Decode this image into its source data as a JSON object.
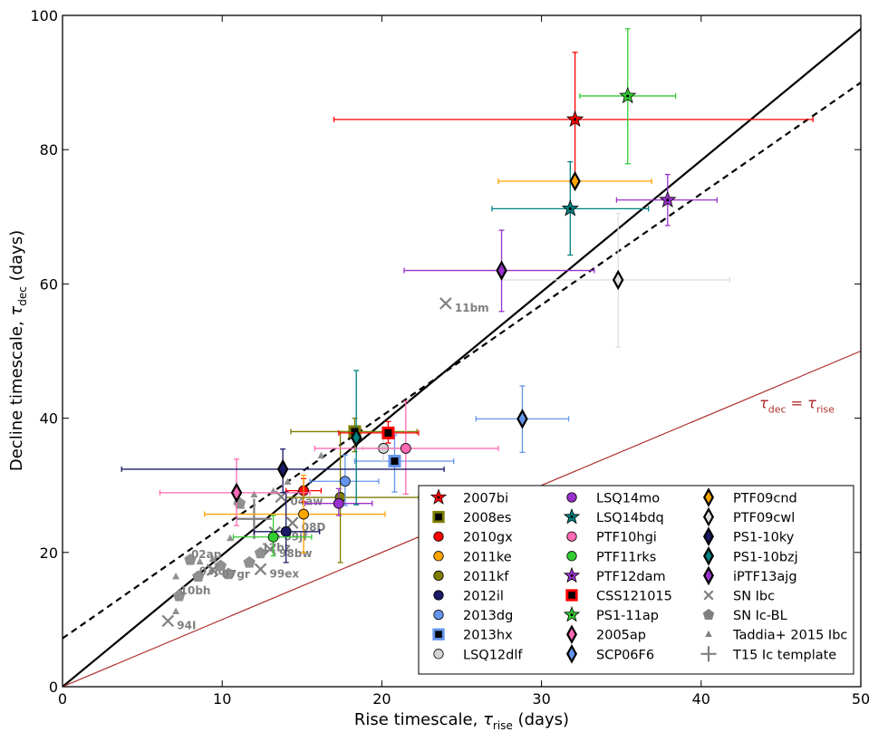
{
  "chart_data": {
    "type": "scatter",
    "xlabel_main": "Rise timescale, ",
    "xlabel_sym": "τ",
    "xlabel_sub": "rise",
    "xlabel_unit": " (days)",
    "ylabel_main": "Decline timescale, ",
    "ylabel_sym": "τ",
    "ylabel_sub": "dec",
    "ylabel_unit": " (days)",
    "xlim": [
      0,
      50
    ],
    "ylim": [
      0,
      100
    ],
    "xticks": [
      0,
      10,
      20,
      30,
      40,
      50
    ],
    "yticks": [
      0,
      20,
      40,
      60,
      80,
      100
    ],
    "xtick_labels": [
      "0",
      "10",
      "20",
      "30",
      "40",
      "50"
    ],
    "ytick_labels": [
      "0",
      "20",
      "40",
      "60",
      "80",
      "100"
    ],
    "lines": [
      {
        "name": "solid-fit",
        "x1": 0,
        "y1": 0,
        "x2": 50,
        "y2": 98,
        "color": "#000000",
        "dash": "",
        "width": 2.2
      },
      {
        "name": "dashed-fit",
        "x1": 0,
        "y1": 7.2,
        "x2": 50,
        "y2": 90,
        "color": "#000000",
        "dash": "7,5",
        "width": 2.2
      },
      {
        "name": "equality-line",
        "x1": 0,
        "y1": 0,
        "x2": 50,
        "y2": 50,
        "color": "#b03030",
        "dash": "",
        "width": 1.2
      }
    ],
    "equality_label": {
      "sym": "τ",
      "sub1": "dec",
      "eq": " = ",
      "sym2": "τ",
      "sub2": "rise",
      "color": "#b03030",
      "x": 46,
      "y": 41.5
    },
    "points": [
      {
        "name": "2007bi",
        "marker": "star",
        "color": "#ff0000",
        "x": 32.1,
        "y": 84.5,
        "xlo": 17,
        "xhi": 47,
        "ylo": 75,
        "yhi": 94.5
      },
      {
        "name": "2008es",
        "marker": "square",
        "color": "#7d7d00",
        "x": 18.3,
        "y": 38,
        "xlo": 14.3,
        "xhi": 22.2,
        "ylo": 35,
        "yhi": 40
      },
      {
        "name": "2010gx",
        "marker": "circle",
        "color": "#ff0000",
        "x": 15.1,
        "y": 29.2,
        "xlo": 14.0,
        "xhi": 16.2,
        "ylo": 27.5,
        "yhi": 31
      },
      {
        "name": "2011ke",
        "marker": "circle",
        "color": "#ffa500",
        "x": 15.1,
        "y": 25.7,
        "xlo": 8.9,
        "xhi": 20.2,
        "ylo": 20,
        "yhi": 31.5
      },
      {
        "name": "2011kf",
        "marker": "circle",
        "color": "#7d7d00",
        "x": 17.4,
        "y": 28.2,
        "xlo": 14.0,
        "xhi": 22.3,
        "ylo": 18.5,
        "yhi": 38
      },
      {
        "name": "2012il",
        "marker": "circle",
        "color": "#1a1a66",
        "x": 14.0,
        "y": 23.1,
        "xlo": 12.0,
        "xhi": 16.1,
        "ylo": 18.5,
        "yhi": 29
      },
      {
        "name": "2013dg",
        "marker": "circle",
        "color": "#6495ed",
        "x": 17.7,
        "y": 30.6,
        "xlo": 15.5,
        "xhi": 19.8,
        "ylo": 27,
        "yhi": 34.5
      },
      {
        "name": "2013hx",
        "marker": "square",
        "color": "#6495ed",
        "x": 20.8,
        "y": 33.6,
        "xlo": 18.3,
        "xhi": 24.5,
        "ylo": 29,
        "yhi": 37.5
      },
      {
        "name": "LSQ12dlf",
        "marker": "circle",
        "color": "#d3d3d3",
        "x": 20.1,
        "y": 35.5,
        "xlo": 18.8,
        "xhi": 21.6,
        "ylo": 33.5,
        "yhi": 37.5
      },
      {
        "name": "LSQ14mo",
        "marker": "circle",
        "color": "#9932cc",
        "x": 17.3,
        "y": 27.3,
        "xlo": 15.2,
        "xhi": 19.4,
        "ylo": 25.5,
        "yhi": 29.5
      },
      {
        "name": "LSQ14bdq",
        "marker": "star",
        "color": "#008080",
        "x": 31.8,
        "y": 71.2,
        "xlo": 26.9,
        "xhi": 36.7,
        "ylo": 64.3,
        "yhi": 78.2
      },
      {
        "name": "PTF10hgi",
        "marker": "circle",
        "color": "#ff69b4",
        "x": 21.5,
        "y": 35.5,
        "xlo": 15.8,
        "xhi": 27.3,
        "ylo": 28.7,
        "yhi": 42.5
      },
      {
        "name": "PTF11rks",
        "marker": "circle",
        "color": "#32cd32",
        "x": 13.2,
        "y": 22.3,
        "xlo": 10.7,
        "xhi": 15.6,
        "ylo": 19.5,
        "yhi": 25.5
      },
      {
        "name": "PTF12dam",
        "marker": "star",
        "color": "#9932cc",
        "x": 37.9,
        "y": 72.5,
        "xlo": 34.7,
        "xhi": 41.0,
        "ylo": 68.7,
        "yhi": 76.3
      },
      {
        "name": "CSS121015",
        "marker": "square",
        "color": "#ff0000",
        "x": 20.4,
        "y": 37.8,
        "xlo": 17.3,
        "xhi": 22.3,
        "ylo": 36.3,
        "yhi": 39.5
      },
      {
        "name": "PS1-11ap",
        "marker": "star",
        "color": "#32cd32",
        "x": 35.4,
        "y": 88,
        "xlo": 32.4,
        "xhi": 38.4,
        "ylo": 77.9,
        "yhi": 98
      },
      {
        "name": "2005ap",
        "marker": "diamond",
        "color": "#ff69b4",
        "x": 10.9,
        "y": 28.9,
        "xlo": 6.1,
        "xhi": 15.5,
        "ylo": 24,
        "yhi": 33.9
      },
      {
        "name": "SCP06F6",
        "marker": "diamond",
        "color": "#6495ed",
        "x": 28.8,
        "y": 39.9,
        "xlo": 25.9,
        "xhi": 31.7,
        "ylo": 34.9,
        "yhi": 44.8
      },
      {
        "name": "PTF09cnd",
        "marker": "diamond",
        "color": "#ffa500",
        "x": 32.1,
        "y": 75.3,
        "xlo": 27.3,
        "xhi": 36.9,
        "ylo": 75.3,
        "yhi": 75.3
      },
      {
        "name": "PTF09cwl",
        "marker": "diamond",
        "color": "#e0e0e0",
        "x": 34.8,
        "y": 60.6,
        "xlo": 27.5,
        "xhi": 41.8,
        "ylo": 50.6,
        "yhi": 70.5
      },
      {
        "name": "PS1-10ky",
        "marker": "diamond",
        "color": "#1a1a66",
        "x": 13.8,
        "y": 32.4,
        "xlo": 3.7,
        "xhi": 23.9,
        "ylo": 28.9,
        "yhi": 35.4
      },
      {
        "name": "PS1-10bzj",
        "marker": "diamond",
        "color": "#008080",
        "x": 18.4,
        "y": 37.1,
        "xlo": 18.4,
        "xhi": 18.4,
        "ylo": 27.1,
        "yhi": 47.1
      },
      {
        "name": "iPTF13ajg",
        "marker": "diamond",
        "color": "#9932cc",
        "x": 27.5,
        "y": 62,
        "xlo": 21.4,
        "xhi": 33.3,
        "ylo": 55.9,
        "yhi": 68
      }
    ],
    "ibc": [
      {
        "label": "11bm",
        "x": 24.0,
        "y": 57.1
      },
      {
        "label": "04aw",
        "x": 13.7,
        "y": 28.3
      },
      {
        "label": "08D",
        "x": 14.4,
        "y": 24.4
      },
      {
        "label": "09jf",
        "x": 13.3,
        "y": 23.0
      },
      {
        "label": "98bw",
        "x": 13.0,
        "y": 20.5
      },
      {
        "label": "99ex",
        "x": 12.4,
        "y": 17.5
      },
      {
        "label": "07gr",
        "x": 9.4,
        "y": 17.4
      },
      {
        "label": "94I",
        "x": 6.6,
        "y": 9.8
      }
    ],
    "iclbl": [
      {
        "label": "02ap",
        "x": 8.0,
        "y": 18.9
      },
      {
        "label": "12bz",
        "x": 12.4,
        "y": 19.9
      },
      {
        "label": "03jd",
        "x": 8.5,
        "y": 16.4
      },
      {
        "label": "10bh",
        "x": 7.3,
        "y": 13.5
      },
      {
        "label": "",
        "x": 9.9,
        "y": 18.0
      },
      {
        "label": "",
        "x": 10.4,
        "y": 16.8
      },
      {
        "label": "",
        "x": 11.7,
        "y": 18.5
      },
      {
        "label": "",
        "x": 11.1,
        "y": 27.3
      }
    ],
    "taddia": [
      {
        "x": 7.1,
        "y": 16.4
      },
      {
        "x": 7.4,
        "y": 14.1
      },
      {
        "x": 7.1,
        "y": 11.2
      },
      {
        "x": 8.6,
        "y": 18.6
      },
      {
        "x": 9.4,
        "y": 19.0
      },
      {
        "x": 10.5,
        "y": 22.1
      },
      {
        "x": 10.9,
        "y": 27.5
      },
      {
        "x": 11.2,
        "y": 26.9
      },
      {
        "x": 12.0,
        "y": 28.6
      },
      {
        "x": 13.2,
        "y": 29.1
      },
      {
        "x": 14.1,
        "y": 30.5
      },
      {
        "x": 16.2,
        "y": 34.4
      }
    ],
    "template": {
      "x": 12.0,
      "y": 25.0,
      "dx": 1.1,
      "dy": 3.0
    },
    "legend": {
      "position": "lower-right",
      "columns": [
        [
          {
            "label": "2007bi",
            "marker": "star",
            "color": "#ff0000"
          },
          {
            "label": "2008es",
            "marker": "square",
            "color": "#7d7d00"
          },
          {
            "label": "2010gx",
            "marker": "circle",
            "color": "#ff0000"
          },
          {
            "label": "2011ke",
            "marker": "circle",
            "color": "#ffa500"
          },
          {
            "label": "2011kf",
            "marker": "circle",
            "color": "#7d7d00"
          },
          {
            "label": "2012il",
            "marker": "circle",
            "color": "#1a1a66"
          },
          {
            "label": "2013dg",
            "marker": "circle",
            "color": "#6495ed"
          },
          {
            "label": "2013hx",
            "marker": "square",
            "color": "#6495ed"
          },
          {
            "label": "LSQ12dlf",
            "marker": "circle",
            "color": "#d3d3d3"
          }
        ],
        [
          {
            "label": "LSQ14mo",
            "marker": "circle",
            "color": "#9932cc"
          },
          {
            "label": "LSQ14bdq",
            "marker": "star",
            "color": "#008080"
          },
          {
            "label": "PTF10hgi",
            "marker": "circle",
            "color": "#ff69b4"
          },
          {
            "label": "PTF11rks",
            "marker": "circle",
            "color": "#32cd32"
          },
          {
            "label": "PTF12dam",
            "marker": "star",
            "color": "#9932cc"
          },
          {
            "label": "CSS121015",
            "marker": "square",
            "color": "#ff0000"
          },
          {
            "label": "PS1-11ap",
            "marker": "star",
            "color": "#32cd32"
          },
          {
            "label": "2005ap",
            "marker": "diamond",
            "color": "#ff69b4"
          },
          {
            "label": "SCP06F6",
            "marker": "diamond",
            "color": "#6495ed"
          }
        ],
        [
          {
            "label": "PTF09cnd",
            "marker": "diamond",
            "color": "#ffa500"
          },
          {
            "label": "PTF09cwl",
            "marker": "diamond",
            "color": "#e0e0e0"
          },
          {
            "label": "PS1-10ky",
            "marker": "diamond",
            "color": "#1a1a66"
          },
          {
            "label": "PS1-10bzj",
            "marker": "diamond",
            "color": "#008080"
          },
          {
            "label": "iPTF13ajg",
            "marker": "diamond",
            "color": "#9932cc"
          },
          {
            "label": "SN Ibc",
            "marker": "x",
            "color": "#808080"
          },
          {
            "label": "SN Ic-BL",
            "marker": "pentagon",
            "color": "#808080"
          },
          {
            "label": "Taddia+ 2015 Ibc",
            "marker": "triangle",
            "color": "#808080"
          },
          {
            "label": "T15 Ic template",
            "marker": "plus",
            "color": "#808080"
          }
        ]
      ]
    }
  }
}
